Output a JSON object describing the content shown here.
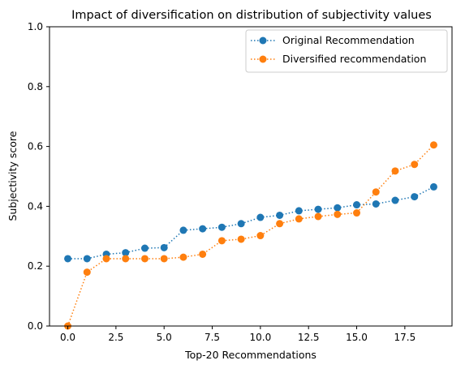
{
  "chart_data": {
    "type": "line",
    "title": "Impact of diversification on distribution of subjectivity values",
    "xlabel": "Top-20 Recommendations",
    "ylabel": "Subjectivity score",
    "xlim": [
      -0.95,
      19.95
    ],
    "ylim": [
      0,
      1
    ],
    "xticks": [
      0.0,
      2.5,
      5.0,
      7.5,
      10.0,
      12.5,
      15.0,
      17.5
    ],
    "xtick_labels": [
      "0.0",
      "2.5",
      "5.0",
      "7.5",
      "10.0",
      "12.5",
      "15.0",
      "17.5"
    ],
    "yticks": [
      0.0,
      0.2,
      0.4,
      0.6,
      0.8,
      1.0
    ],
    "ytick_labels": [
      "0.0",
      "0.2",
      "0.4",
      "0.6",
      "0.8",
      "1.0"
    ],
    "legend_position": "top-right",
    "grid": false,
    "line_style": "dotted",
    "marker": "circle",
    "x": [
      0,
      1,
      2,
      3,
      4,
      5,
      6,
      7,
      8,
      9,
      10,
      11,
      12,
      13,
      14,
      15,
      16,
      17,
      18,
      19
    ],
    "series": [
      {
        "name": "Original Recommendation",
        "color": "#1f77b4",
        "values": [
          0.225,
          0.225,
          0.24,
          0.245,
          0.26,
          0.262,
          0.32,
          0.325,
          0.33,
          0.342,
          0.363,
          0.37,
          0.385,
          0.39,
          0.395,
          0.405,
          0.408,
          0.42,
          0.432,
          0.465
        ]
      },
      {
        "name": "Diversified recommendation",
        "color": "#ff7f0e",
        "values": [
          0.0,
          0.18,
          0.225,
          0.225,
          0.225,
          0.225,
          0.23,
          0.24,
          0.285,
          0.29,
          0.302,
          0.342,
          0.358,
          0.366,
          0.373,
          0.378,
          0.448,
          0.518,
          0.54,
          0.605
        ]
      }
    ]
  }
}
